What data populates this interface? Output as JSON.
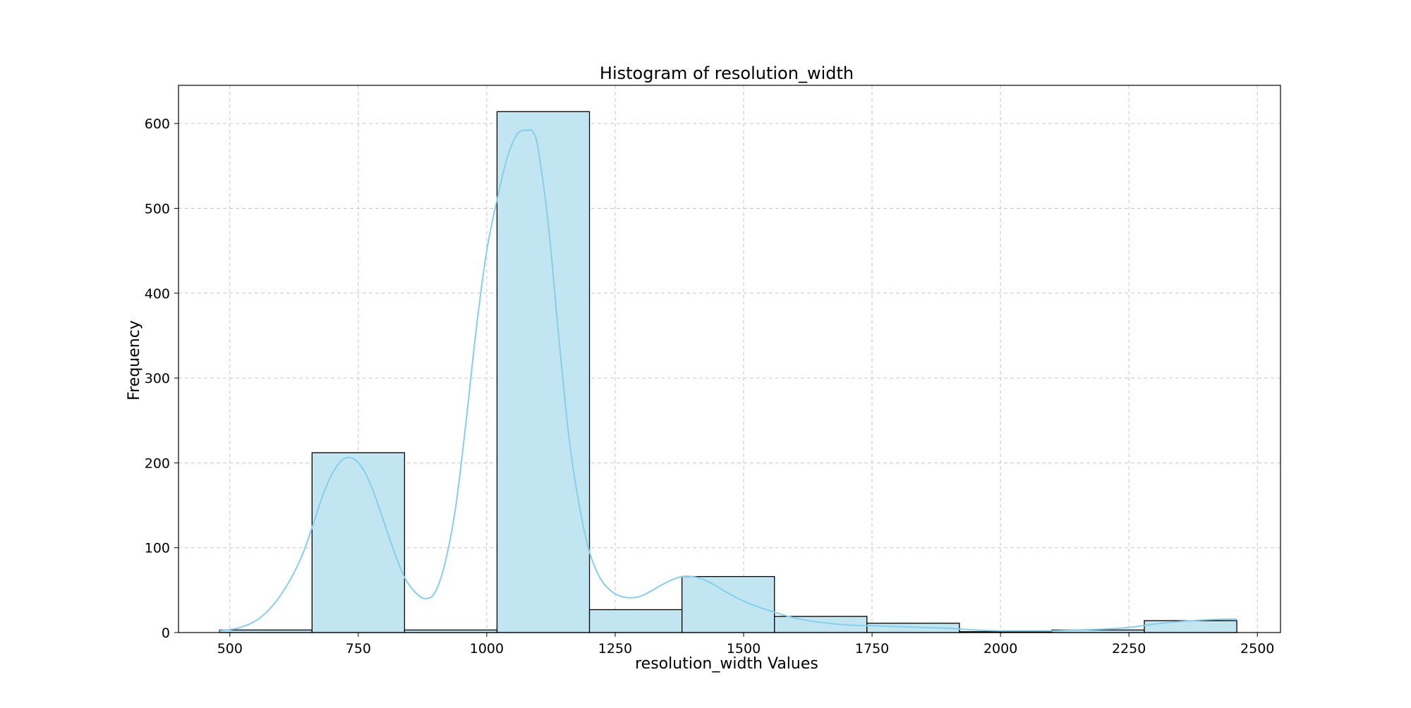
{
  "chart_data": {
    "type": "histogram",
    "title": "Histogram of resolution_width",
    "xlabel": "resolution_width Values",
    "ylabel": "Frequency",
    "xlim": [
      400,
      2545
    ],
    "ylim": [
      0,
      645
    ],
    "x_ticks": [
      500,
      750,
      1000,
      1250,
      1500,
      1750,
      2000,
      2250,
      2500
    ],
    "y_ticks": [
      0,
      100,
      200,
      300,
      400,
      500,
      600
    ],
    "grid": true,
    "bins": [
      {
        "x0": 480,
        "x1": 660,
        "count": 3
      },
      {
        "x0": 660,
        "x1": 840,
        "count": 212
      },
      {
        "x0": 840,
        "x1": 1020,
        "count": 3
      },
      {
        "x0": 1020,
        "x1": 1200,
        "count": 614
      },
      {
        "x0": 1200,
        "x1": 1380,
        "count": 27
      },
      {
        "x0": 1380,
        "x1": 1560,
        "count": 66
      },
      {
        "x0": 1560,
        "x1": 1740,
        "count": 19
      },
      {
        "x0": 1740,
        "x1": 1920,
        "count": 11
      },
      {
        "x0": 1920,
        "x1": 2100,
        "count": 1
      },
      {
        "x0": 2100,
        "x1": 2280,
        "count": 3
      },
      {
        "x0": 2280,
        "x1": 2460,
        "count": 14
      }
    ],
    "kde": {
      "x": [
        480,
        520,
        560,
        600,
        640,
        680,
        700,
        720,
        740,
        760,
        780,
        800,
        820,
        840,
        860,
        880,
        900,
        920,
        940,
        960,
        980,
        1000,
        1020,
        1040,
        1060,
        1080,
        1090,
        1100,
        1120,
        1140,
        1160,
        1180,
        1200,
        1220,
        1240,
        1260,
        1280,
        1300,
        1320,
        1340,
        1360,
        1380,
        1400,
        1420,
        1440,
        1460,
        1480,
        1500,
        1520,
        1560,
        1600,
        1650,
        1700,
        1750,
        1800,
        1850,
        1900,
        1950,
        2000,
        2050,
        2100,
        2150,
        2200,
        2250,
        2300,
        2350,
        2400,
        2460
      ],
      "y": [
        2,
        6,
        18,
        45,
        90,
        160,
        188,
        204,
        205,
        192,
        165,
        130,
        95,
        65,
        48,
        40,
        48,
        85,
        150,
        250,
        360,
        450,
        510,
        560,
        588,
        592,
        590,
        570,
        480,
        350,
        230,
        150,
        95,
        65,
        50,
        43,
        41,
        43,
        49,
        56,
        62,
        66,
        66,
        63,
        57,
        50,
        43,
        37,
        32,
        24,
        17,
        12,
        9,
        8,
        7,
        6,
        5,
        3,
        2,
        2,
        2,
        3,
        4,
        6,
        10,
        13,
        15,
        16
      ]
    },
    "colors": {
      "bar_fill": "#c2e5f2",
      "bar_edge": "#000000",
      "kde_line": "#87ceeb",
      "grid": "#c7c7c7"
    }
  }
}
